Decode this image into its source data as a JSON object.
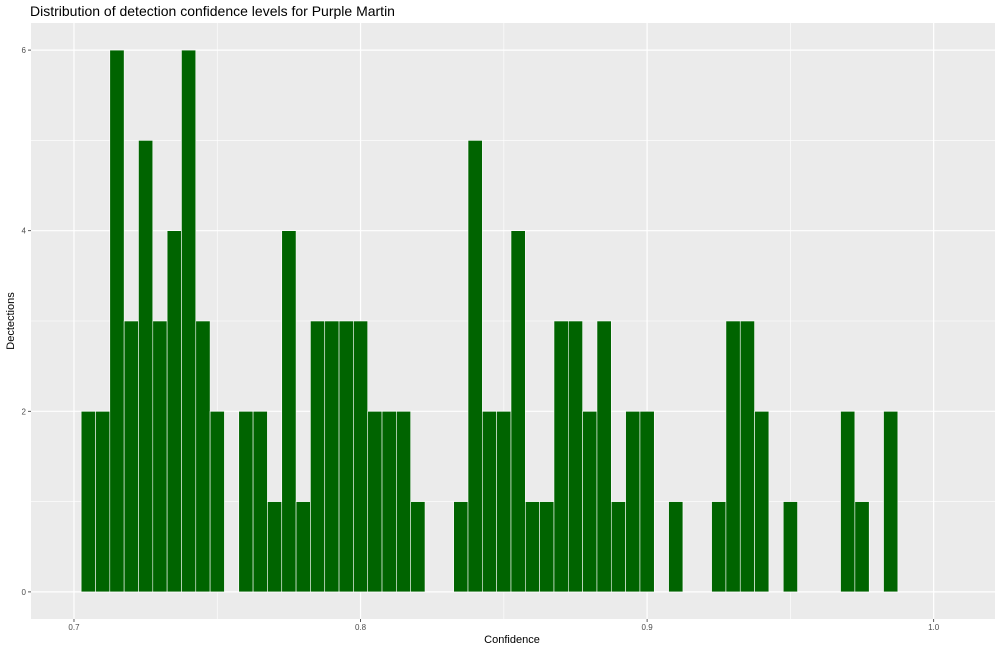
{
  "chart_data": {
    "type": "bar",
    "title": "Distribution of detection confidence levels for Purple Martin",
    "xlabel": "Confidence",
    "ylabel": "Dectections",
    "xlim": [
      0.685,
      1.0214
    ],
    "ylim": [
      -0.3,
      6.3
    ],
    "x_ticks": [
      0.7,
      0.8,
      0.9,
      1.0
    ],
    "x_tick_labels": [
      "0.7",
      "0.8",
      "0.9",
      "1.0"
    ],
    "y_ticks": [
      0,
      2,
      4,
      6
    ],
    "y_tick_labels": [
      "0",
      "2",
      "4",
      "6"
    ],
    "grid": true,
    "bin_width": 0.005,
    "bar_color": "#006400",
    "bar_outline": "#ffffff",
    "panel_background": "#ebebeb",
    "grid_color": "#ffffff",
    "bins": [
      {
        "x": 0.705,
        "y": 2
      },
      {
        "x": 0.71,
        "y": 2
      },
      {
        "x": 0.715,
        "y": 6
      },
      {
        "x": 0.72,
        "y": 3
      },
      {
        "x": 0.725,
        "y": 5
      },
      {
        "x": 0.73,
        "y": 3
      },
      {
        "x": 0.735,
        "y": 4
      },
      {
        "x": 0.74,
        "y": 6
      },
      {
        "x": 0.745,
        "y": 3
      },
      {
        "x": 0.75,
        "y": 2
      },
      {
        "x": 0.755,
        "y": 0
      },
      {
        "x": 0.76,
        "y": 2
      },
      {
        "x": 0.765,
        "y": 2
      },
      {
        "x": 0.77,
        "y": 1
      },
      {
        "x": 0.775,
        "y": 4
      },
      {
        "x": 0.78,
        "y": 1
      },
      {
        "x": 0.785,
        "y": 3
      },
      {
        "x": 0.79,
        "y": 3
      },
      {
        "x": 0.795,
        "y": 3
      },
      {
        "x": 0.8,
        "y": 3
      },
      {
        "x": 0.805,
        "y": 2
      },
      {
        "x": 0.81,
        "y": 2
      },
      {
        "x": 0.815,
        "y": 2
      },
      {
        "x": 0.82,
        "y": 1
      },
      {
        "x": 0.825,
        "y": 0
      },
      {
        "x": 0.83,
        "y": 0
      },
      {
        "x": 0.835,
        "y": 1
      },
      {
        "x": 0.84,
        "y": 5
      },
      {
        "x": 0.845,
        "y": 2
      },
      {
        "x": 0.85,
        "y": 2
      },
      {
        "x": 0.855,
        "y": 4
      },
      {
        "x": 0.86,
        "y": 1
      },
      {
        "x": 0.865,
        "y": 1
      },
      {
        "x": 0.87,
        "y": 3
      },
      {
        "x": 0.875,
        "y": 3
      },
      {
        "x": 0.88,
        "y": 2
      },
      {
        "x": 0.885,
        "y": 3
      },
      {
        "x": 0.89,
        "y": 1
      },
      {
        "x": 0.895,
        "y": 2
      },
      {
        "x": 0.9,
        "y": 2
      },
      {
        "x": 0.905,
        "y": 0
      },
      {
        "x": 0.91,
        "y": 1
      },
      {
        "x": 0.915,
        "y": 0
      },
      {
        "x": 0.92,
        "y": 0
      },
      {
        "x": 0.925,
        "y": 1
      },
      {
        "x": 0.93,
        "y": 3
      },
      {
        "x": 0.935,
        "y": 3
      },
      {
        "x": 0.94,
        "y": 2
      },
      {
        "x": 0.945,
        "y": 0
      },
      {
        "x": 0.95,
        "y": 1
      },
      {
        "x": 0.955,
        "y": 0
      },
      {
        "x": 0.96,
        "y": 0
      },
      {
        "x": 0.965,
        "y": 0
      },
      {
        "x": 0.97,
        "y": 2
      },
      {
        "x": 0.975,
        "y": 1
      },
      {
        "x": 0.98,
        "y": 0
      },
      {
        "x": 0.985,
        "y": 2
      }
    ]
  }
}
